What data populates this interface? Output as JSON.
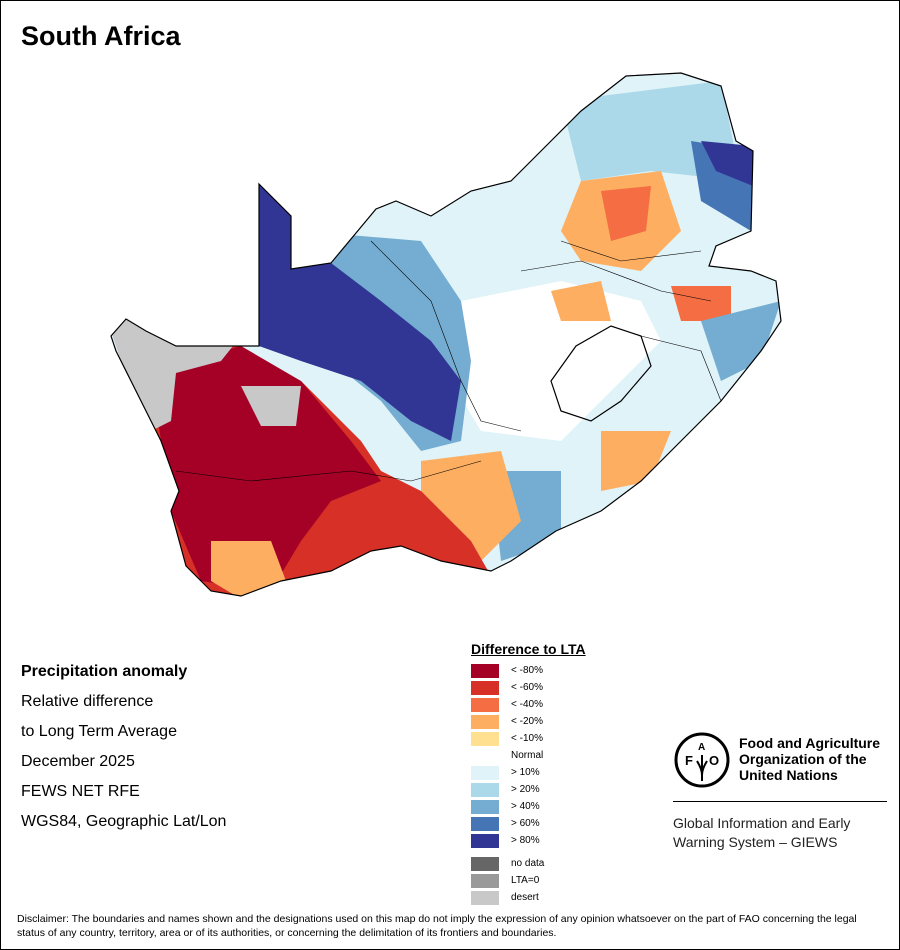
{
  "title": "South Africa",
  "info": {
    "heading": "Precipitation anomaly",
    "lines": [
      "Relative difference",
      "to Long Term Average",
      "December 2025",
      "FEWS NET RFE",
      "WGS84, Geographic Lat/Lon"
    ]
  },
  "legend": {
    "title": "Difference to LTA",
    "items": [
      {
        "label": "< -80%",
        "color": "#a50026"
      },
      {
        "label": "< -60%",
        "color": "#d73027"
      },
      {
        "label": "< -40%",
        "color": "#f46d43"
      },
      {
        "label": "< -20%",
        "color": "#fdae61"
      },
      {
        "label": "< -10%",
        "color": "#fee090"
      },
      {
        "label": "Normal",
        "color": "#ffffff"
      },
      {
        "label": "> 10%",
        "color": "#e0f3f8"
      },
      {
        "label": "> 20%",
        "color": "#abd9e9"
      },
      {
        "label": "> 40%",
        "color": "#74add1"
      },
      {
        "label": "> 60%",
        "color": "#4575b4"
      },
      {
        "label": "> 80%",
        "color": "#313695"
      }
    ],
    "extra": [
      {
        "label": "no data",
        "color": "#666666"
      },
      {
        "label": "LTA=0",
        "color": "#999999"
      },
      {
        "label": "desert",
        "color": "#c8c8c8"
      }
    ]
  },
  "fao": {
    "logo_text": "FAO FIAT PANIS",
    "name_lines": [
      "Food and Agriculture",
      "Organization of the",
      "United Nations"
    ],
    "giews_lines": [
      "Global Information and Early",
      "Warning System – GIEWS"
    ]
  },
  "disclaimer": "Disclaimer: The boundaries and names shown and the designations used on this map do not imply the expression of any opinion whatsoever on the part of FAO concerning the legal status of any country, territory, area or of its authorities, or concerning the delimitation of its frontiers and boundaries."
}
